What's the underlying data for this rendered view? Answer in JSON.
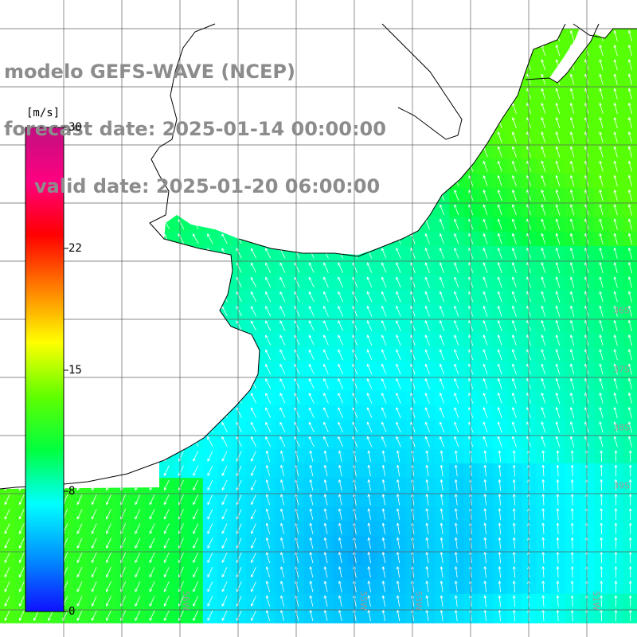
{
  "title": {
    "line1": "modelo GEFS-WAVE (NCEP)",
    "line2": "forecast date: 2025-01-14 00:00:00",
    "line3": "valid date: 2025-01-20 06:00:00"
  },
  "colorbar": {
    "unit": "[m/s]",
    "ticks": [
      "30",
      "22",
      "15",
      "8",
      "0"
    ],
    "min": 0,
    "max": 30,
    "colors": [
      "#1010ff",
      "#0090ff",
      "#00ffff",
      "#00ff40",
      "#60ff00",
      "#ffff00",
      "#ff8000",
      "#ff0000",
      "#ff0080",
      "#c01080"
    ]
  },
  "lat_labels": [
    "36S",
    "37S",
    "38S",
    "39S"
  ],
  "lon_labels": [
    "56W",
    "55W",
    "53W",
    "51W"
  ],
  "colors": {
    "land": "#ffffff",
    "coast": "#000000",
    "grid": "#606060",
    "arrow": "#ffffff",
    "title": "#8c8c8c"
  }
}
